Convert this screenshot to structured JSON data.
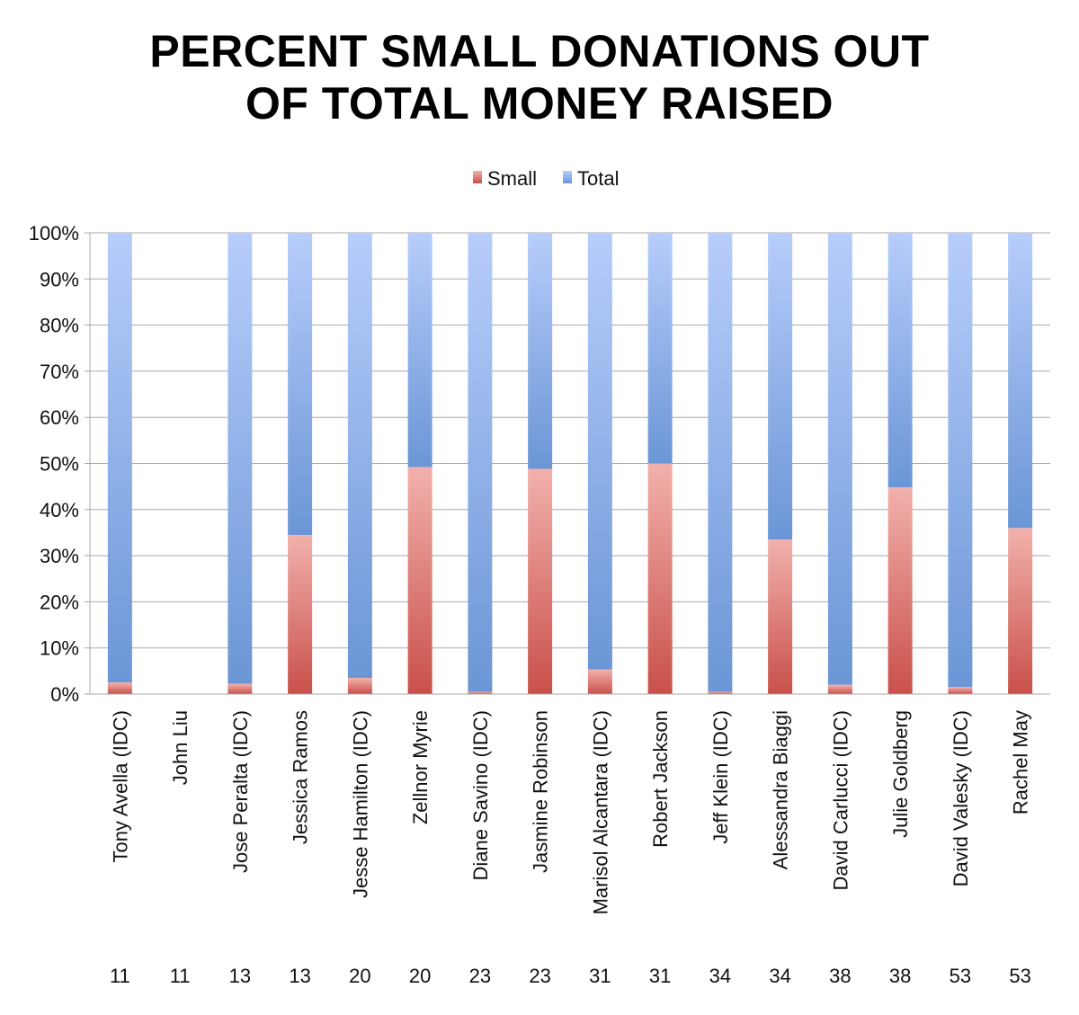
{
  "title_lines": [
    "PERCENT SMALL DONATIONS OUT",
    "OF TOTAL MONEY RAISED"
  ],
  "colors": {
    "small_top": "#f2b1ac",
    "small_bottom": "#c9504a",
    "total_top": "#b7cdfb",
    "total_bottom": "#6b96d6",
    "grid": "#a8a8a8"
  },
  "chart_data": {
    "type": "bar",
    "stacked": "percent",
    "title": "PERCENT SMALL DONATIONS OUT OF TOTAL MONEY RAISED",
    "legend": {
      "position": "top-center",
      "entries": [
        "Small",
        "Total"
      ]
    },
    "ylim": [
      0,
      100
    ],
    "yticks": [
      "0%",
      "10%",
      "20%",
      "30%",
      "40%",
      "50%",
      "60%",
      "70%",
      "80%",
      "90%",
      "100%"
    ],
    "grid": true,
    "categories": [
      "Tony Avella (IDC)",
      "John Liu",
      "Jose Peralta (IDC)",
      "Jessica Ramos",
      "Jesse Hamilton (IDC)",
      "Zellnor Myrie",
      "Diane Savino (IDC)",
      "Jasmine Robinson",
      "Marisol Alcantara (IDC)",
      "Robert Jackson",
      "Jeff Klein (IDC)",
      "Alessandra Biaggi",
      "David Carlucci (IDC)",
      "Julie Goldberg",
      "David Valesky (IDC)",
      "Rachel May"
    ],
    "district_labels": [
      "11",
      "11",
      "13",
      "13",
      "20",
      "20",
      "23",
      "23",
      "31",
      "31",
      "34",
      "34",
      "38",
      "38",
      "53",
      "53"
    ],
    "series": [
      {
        "name": "Small",
        "values": [
          2.5,
          0,
          2.2,
          34.5,
          3.5,
          49.2,
          0.5,
          48.8,
          5.3,
          50.0,
          0.5,
          33.5,
          2.0,
          44.8,
          1.5,
          36.0
        ]
      },
      {
        "name": "Total",
        "values": [
          97.5,
          0,
          97.8,
          65.5,
          96.5,
          50.8,
          99.5,
          51.2,
          94.7,
          50.0,
          99.5,
          66.5,
          98.0,
          55.2,
          98.5,
          64.0
        ]
      }
    ]
  }
}
